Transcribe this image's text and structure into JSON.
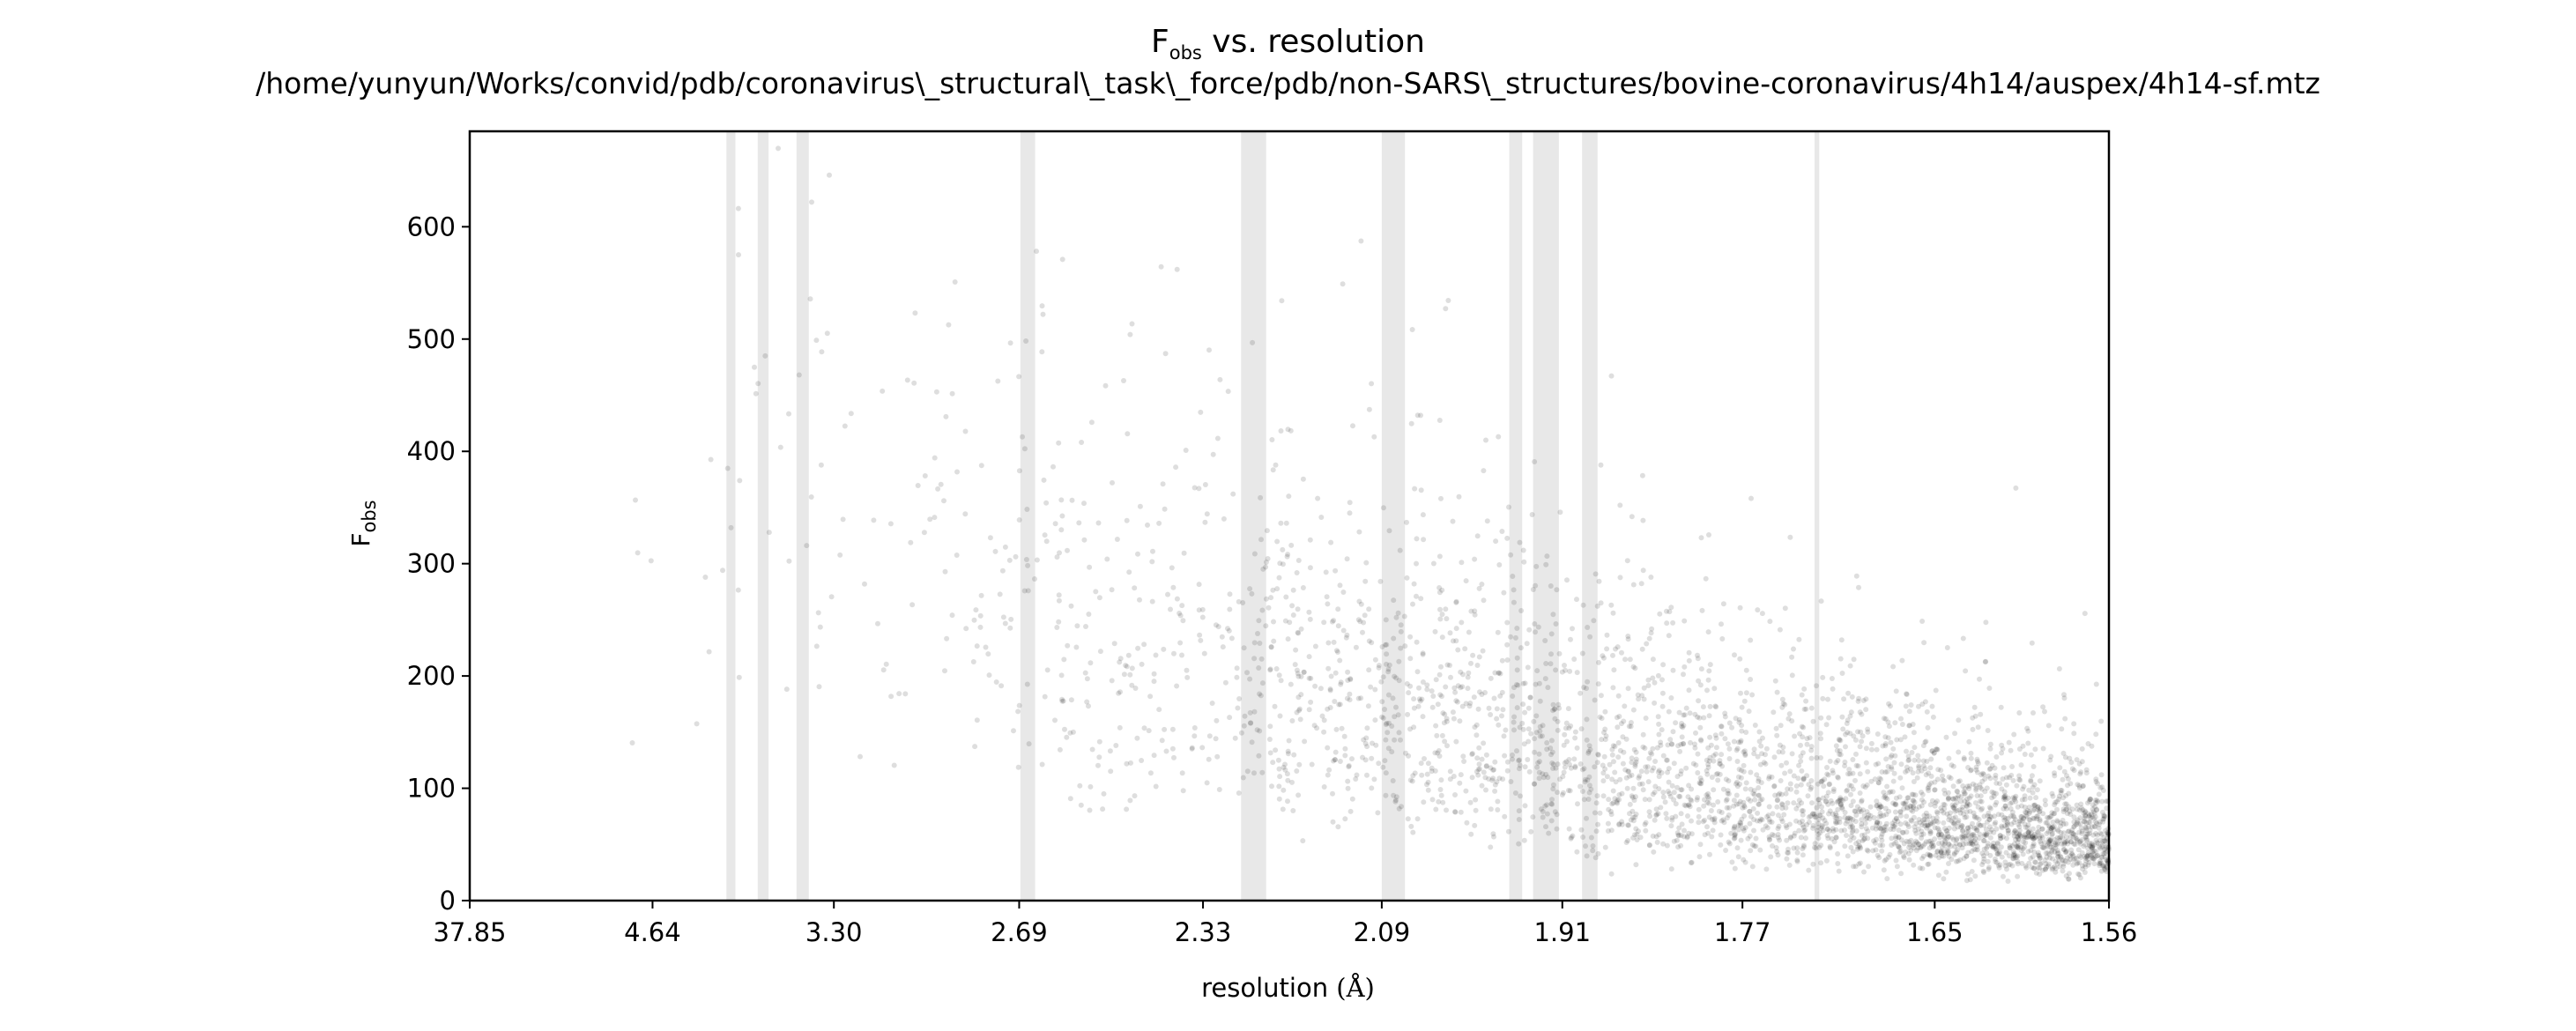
{
  "title": {
    "prefix": "F",
    "subscript": "obs",
    "suffix": " vs. resolution",
    "path": "/home/yunyun/Works/convid/pdb/coronavirus\\_structural\\_task\\_force/pdb/non-SARS\\_structures/bovine-coronavirus/4h14/auspex/4h14-sf.mtz"
  },
  "chart_data": {
    "type": "scatter",
    "title": "Fobs vs. resolution",
    "subtitle": "/home/yunyun/Works/convid/pdb/coronavirus\\_structural\\_task\\_force/pdb/non-SARS\\_structures/bovine-coronavirus/4h14/auspex/4h14-sf.mtz",
    "xlabel": "resolution",
    "xlabel_unit": "(Å)",
    "ylabel": "F",
    "ylabel_subscript": "obs",
    "x_scale": "1/d^2",
    "x_axis_1_over_d2_range": [
      0.0007,
      0.4109
    ],
    "x_ticks": [
      "37.85",
      "4.64",
      "3.30",
      "2.69",
      "2.33",
      "2.09",
      "1.91",
      "1.77",
      "1.65",
      "1.56"
    ],
    "ylim": [
      0,
      685
    ],
    "y_ticks": [
      0,
      100,
      200,
      300,
      400,
      500,
      600
    ],
    "points_color": "#000000",
    "point_alpha": 0.13,
    "ice_ring_shade_color": "#e8e8e8",
    "ice_rings_resolution_A": [
      [
        3.924,
        3.858
      ],
      [
        3.707,
        3.64
      ],
      [
        3.482,
        3.419
      ],
      [
        2.687,
        2.652
      ],
      [
        2.272,
        2.236
      ],
      [
        2.09,
        2.064
      ],
      [
        1.958,
        1.946
      ],
      [
        1.936,
        1.913
      ],
      [
        1.893,
        1.88
      ],
      [
        1.722,
        1.719
      ]
    ],
    "trend_approx": [
      {
        "resolution": 6.0,
        "Fobs_median": 330
      },
      {
        "resolution": 3.5,
        "Fobs_median": 370
      },
      {
        "resolution": 2.69,
        "Fobs_median": 255
      },
      {
        "resolution": 2.33,
        "Fobs_median": 215
      },
      {
        "resolution": 2.09,
        "Fobs_median": 180
      },
      {
        "resolution": 1.91,
        "Fobs_median": 140
      },
      {
        "resolution": 1.77,
        "Fobs_median": 100
      },
      {
        "resolution": 1.65,
        "Fobs_median": 75
      },
      {
        "resolution": 1.56,
        "Fobs_median": 55
      }
    ],
    "grid": false
  }
}
